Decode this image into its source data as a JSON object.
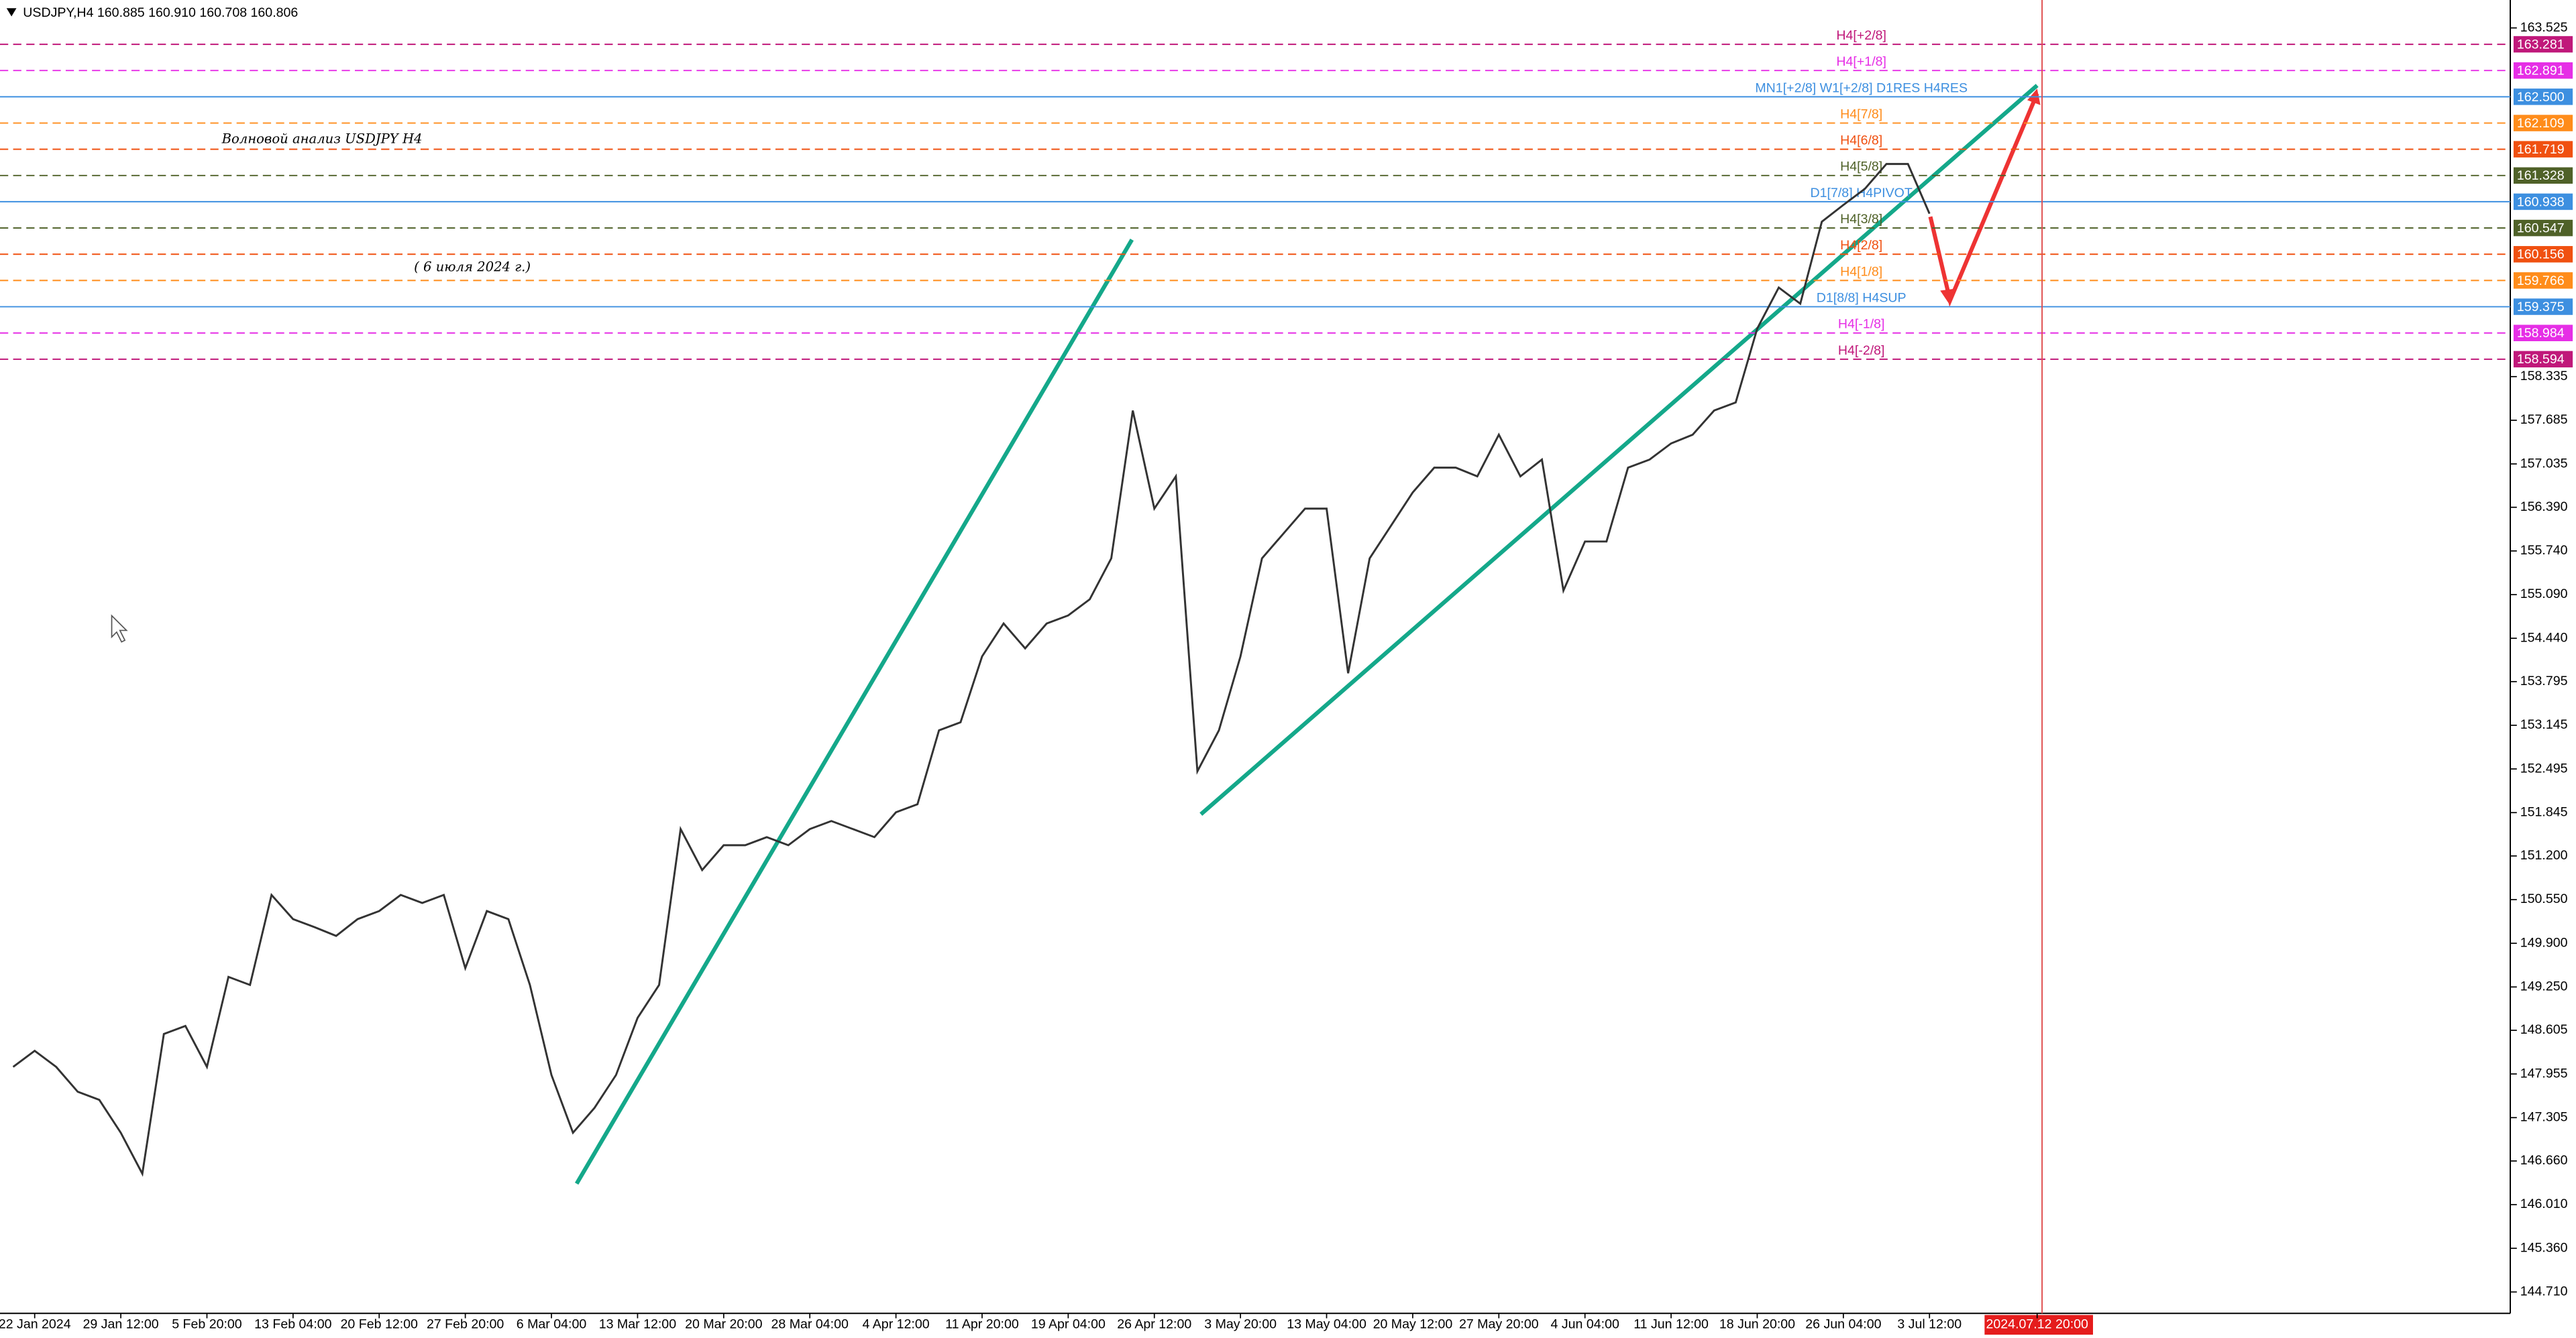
{
  "chart_data": {
    "type": "line",
    "header": "USDJPY,H4  160.885 160.910 160.708 160.806",
    "title": "Волновой анализ USDJPY H4",
    "subtitle": "( 6 июля 2024 г.)",
    "categories": [
      null,
      "22 Jan 2024",
      null,
      null,
      null,
      "29 Jan 12:00",
      null,
      null,
      null,
      "5 Feb 20:00",
      null,
      null,
      null,
      "13 Feb 04:00",
      null,
      null,
      null,
      "20 Feb 12:00",
      null,
      null,
      null,
      "27 Feb 20:00",
      null,
      null,
      null,
      "6 Mar 04:00",
      null,
      null,
      null,
      "13 Mar 12:00",
      null,
      null,
      null,
      "20 Mar 20:00",
      null,
      null,
      null,
      "28 Mar 04:00",
      null,
      null,
      null,
      "4 Apr 12:00",
      null,
      null,
      null,
      "11 Apr 20:00",
      null,
      null,
      null,
      "19 Apr 04:00",
      null,
      null,
      null,
      "26 Apr 12:00",
      null,
      null,
      null,
      "3 May 20:00",
      null,
      null,
      null,
      "13 May 04:00",
      null,
      null,
      null,
      "20 May 12:00",
      null,
      null,
      null,
      "27 May 20:00",
      null,
      null,
      null,
      "4 Jun 04:00",
      null,
      null,
      null,
      "11 Jun 12:00",
      null,
      null,
      null,
      "18 Jun 20:00",
      null,
      null,
      null,
      "26 Jun 04:00",
      null,
      null,
      null,
      "3 Jul 12:00",
      null,
      null,
      null,
      null,
      "2024.07.12 20:00"
    ],
    "series": [
      {
        "name": "USDJPY,H4",
        "color": "#333333",
        "values": [
          148.06,
          148.3,
          148.06,
          147.69,
          147.57,
          147.08,
          146.47,
          148.55,
          148.67,
          148.06,
          149.4,
          149.28,
          150.62,
          150.26,
          150.14,
          150.01,
          150.26,
          150.38,
          150.62,
          150.5,
          150.62,
          149.53,
          150.38,
          150.26,
          149.28,
          147.94,
          147.08,
          147.45,
          147.94,
          148.79,
          149.28,
          151.6,
          150.99,
          151.36,
          151.36,
          151.48,
          151.36,
          151.6,
          151.72,
          151.6,
          151.48,
          151.85,
          151.97,
          153.07,
          153.19,
          154.17,
          154.66,
          154.29,
          154.66,
          154.78,
          155.02,
          155.63,
          157.83,
          156.37,
          156.85,
          152.46,
          153.07,
          154.17,
          155.63,
          156.0,
          156.37,
          156.37,
          153.92,
          155.63,
          156.12,
          156.61,
          156.98,
          156.98,
          156.85,
          157.47,
          156.85,
          157.1,
          155.15,
          155.88,
          155.88,
          156.98,
          157.1,
          157.34,
          157.47,
          157.83,
          157.95,
          159.05,
          159.66,
          159.42,
          160.64,
          160.89,
          161.13,
          161.5,
          161.5,
          160.76,
          null,
          null,
          null,
          null,
          null
        ]
      }
    ],
    "ylim": [
      144.392,
      163.94
    ],
    "yticks": [
      163.525,
      158.335,
      157.685,
      157.035,
      {
        "value": 156.39,
        "label": "156.390"
      },
      {
        "value": 155.74,
        "label": "155.740"
      },
      {
        "value": 155.09,
        "label": "155.090"
      },
      {
        "value": 154.44,
        "label": "154.440"
      },
      153.795,
      153.145,
      152.495,
      151.845,
      {
        "value": 151.2,
        "label": "151.200"
      },
      {
        "value": 150.55,
        "label": "150.550"
      },
      {
        "value": 149.9,
        "label": "149.900"
      },
      {
        "value": 149.25,
        "label": "149.250"
      },
      148.605,
      147.955,
      147.305,
      {
        "value": 146.66,
        "label": "146.660"
      },
      {
        "value": 146.01,
        "label": "146.010"
      },
      {
        "value": 145.36,
        "label": "145.360"
      },
      {
        "value": 144.71,
        "label": "144.710"
      }
    ],
    "grid": false,
    "levels": [
      {
        "name": "H4[+2/8]",
        "value": 163.281,
        "value_label": "163.281",
        "color": "#c0187a",
        "line_style": "dashed"
      },
      {
        "name": "H4[+1/8]",
        "value": 162.891,
        "value_label": "162.891",
        "color": "#e62ee6",
        "line_style": "dashed"
      },
      {
        "name": "MN1[+2/8] W1[+2/8] D1RES H4RES",
        "value": 162.5,
        "value_label": "162.500",
        "color": "#3d8fe0",
        "line_style": "solid"
      },
      {
        "name": "H4[7/8]",
        "value": 162.109,
        "value_label": "162.109",
        "color": "#ff8c1a",
        "line_style": "dashed"
      },
      {
        "name": "H4[6/8]",
        "value": 161.719,
        "value_label": "161.719",
        "color": "#f05010",
        "line_style": "dashed"
      },
      {
        "name": "H4[5/8]",
        "value": 161.328,
        "value_label": "161.328",
        "color": "#4f6128",
        "line_style": "dashed"
      },
      {
        "name": "D1[7/8] H4PIVOT",
        "value": 160.938,
        "value_label": "160.938",
        "color": "#3d8fe0",
        "line_style": "solid"
      },
      {
        "name": "H4[3/8]",
        "value": 160.547,
        "value_label": "160.547",
        "color": "#4f6128",
        "line_style": "dashed"
      },
      {
        "name": "H4[2/8]",
        "value": 160.156,
        "value_label": "160.156",
        "color": "#f05010",
        "line_style": "dashed"
      },
      {
        "name": "H4[1/8]",
        "value": 159.766,
        "value_label": "159.766",
        "color": "#ff8c1a",
        "line_style": "dashed"
      },
      {
        "name": "D1[8/8] H4SUP",
        "value": 159.375,
        "value_label": "159.375",
        "color": "#3d8fe0",
        "line_style": "solid"
      },
      {
        "name": "H4[-1/8]",
        "value": 158.984,
        "value_label": "158.984",
        "color": "#e62ee6",
        "line_style": "dashed"
      },
      {
        "name": "H4[-2/8]",
        "value": 158.594,
        "value_label": "158.594",
        "color": "#c0187a",
        "line_style": "dashed"
      }
    ]
  }
}
